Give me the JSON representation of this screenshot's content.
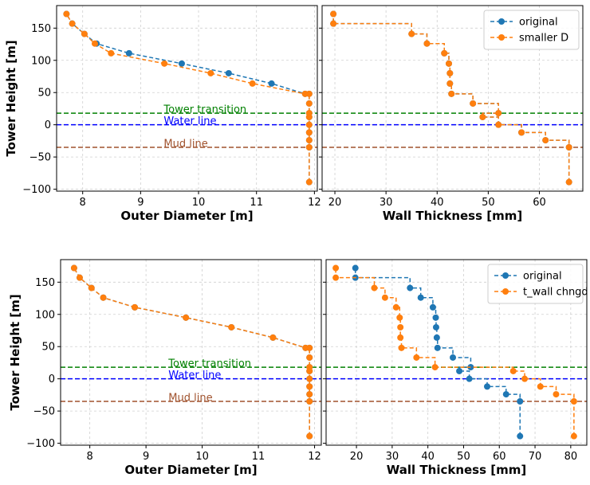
{
  "colors": {
    "original": "#1f77b4",
    "modified": "#ff7f0e",
    "transition": "#008000",
    "water": "#0000ff",
    "mud": "#a0522d"
  },
  "annotations": {
    "transition": "Tower transition",
    "water": "Water line",
    "mud": "Mud line"
  },
  "reference_lines": {
    "transition": 18,
    "water": 0,
    "mud": -35
  },
  "chart_data": [
    {
      "type": "line",
      "panel": "top-left",
      "xlabel": "Outer Diameter [m]",
      "ylabel": "Tower Height [m]",
      "xlim": [
        7.55,
        12.05
      ],
      "ylim": [
        -103,
        185
      ],
      "xticks": [
        "8",
        "9",
        "10",
        "11",
        "12"
      ],
      "xtick_values": [
        8,
        9,
        10,
        11,
        12
      ],
      "yticks": [
        "−100",
        "−50",
        "0",
        "50",
        "100",
        "150"
      ],
      "ytick_values": [
        -100,
        -50,
        0,
        50,
        100,
        150
      ],
      "grid": true,
      "series": [
        {
          "name": "original",
          "color": "#1f77b4",
          "x": [
            11.91,
            11.91,
            11.91,
            11.91,
            11.91,
            11.91,
            11.91,
            11.91,
            11.91,
            11.84,
            11.26,
            10.52,
            9.71,
            8.8,
            8.24,
            8.03,
            7.82,
            7.72
          ],
          "y": [
            -89,
            -35,
            -24,
            -12,
            0,
            12,
            18,
            33,
            48,
            48,
            64,
            80,
            95,
            111,
            126,
            141,
            157,
            172
          ]
        },
        {
          "name": "smaller D",
          "color": "#ff7f0e",
          "x": [
            11.91,
            11.91,
            11.91,
            11.91,
            11.91,
            11.91,
            11.91,
            11.91,
            11.91,
            11.84,
            10.93,
            10.21,
            9.41,
            8.49,
            8.21,
            8.03,
            7.82,
            7.72
          ],
          "y": [
            -89,
            -35,
            -24,
            -12,
            0,
            12,
            18,
            33,
            48,
            48,
            64,
            80,
            95,
            111,
            126,
            141,
            157,
            172
          ]
        }
      ]
    },
    {
      "type": "line",
      "panel": "top-right",
      "xlabel": "Wall Thickness [mm]",
      "legend_position": "top-right",
      "xlim": [
        17.5,
        68.5
      ],
      "ylim": [
        -103,
        185
      ],
      "xticks": [
        "20",
        "30",
        "40",
        "50",
        "60"
      ],
      "xtick_values": [
        20,
        30,
        40,
        50,
        60
      ],
      "yticks": [],
      "ytick_values": [
        -100,
        -50,
        0,
        50,
        100,
        150
      ],
      "grid": true,
      "legend": [
        "original",
        "smaller D"
      ],
      "series": [
        {
          "name": "original",
          "color": "#1f77b4",
          "x": [
            65.8,
            65.8,
            61.2,
            56.5,
            52.0,
            48.9,
            52.0,
            47.0,
            42.8,
            42.5,
            42.5,
            42.3,
            41.4,
            38.0,
            35.0,
            19.7,
            19.7
          ],
          "y": [
            -89,
            -35,
            -24,
            -12,
            0,
            12,
            18,
            33,
            48,
            64,
            80,
            95,
            111,
            126,
            141,
            157,
            172
          ]
        },
        {
          "name": "smaller D",
          "color": "#ff7f0e",
          "x": [
            65.8,
            65.8,
            61.2,
            56.5,
            52.0,
            48.9,
            52.0,
            47.0,
            42.8,
            42.5,
            42.5,
            42.3,
            41.4,
            38.0,
            35.0,
            19.7,
            19.7
          ],
          "y": [
            -89,
            -35,
            -24,
            -12,
            0,
            12,
            18,
            33,
            48,
            64,
            80,
            95,
            111,
            126,
            141,
            157,
            172
          ]
        }
      ]
    },
    {
      "type": "line",
      "panel": "bottom-left",
      "xlabel": "Outer Diameter [m]",
      "ylabel": "Tower Height [m]",
      "xlim": [
        7.48,
        12.12
      ],
      "ylim": [
        -103,
        185
      ],
      "xticks": [
        "8",
        "9",
        "10",
        "11",
        "12"
      ],
      "xtick_values": [
        8,
        9,
        10,
        11,
        12
      ],
      "yticks": [
        "−100",
        "−50",
        "0",
        "50",
        "100",
        "150"
      ],
      "ytick_values": [
        -100,
        -50,
        0,
        50,
        100,
        150
      ],
      "grid": true,
      "series": [
        {
          "name": "original",
          "color": "#1f77b4",
          "x": [
            11.91,
            11.91,
            11.91,
            11.91,
            11.91,
            11.91,
            11.91,
            11.91,
            11.91,
            11.84,
            11.26,
            10.52,
            9.71,
            8.8,
            8.24,
            8.03,
            7.82,
            7.72
          ],
          "y": [
            -89,
            -35,
            -24,
            -12,
            0,
            12,
            18,
            33,
            48,
            48,
            64,
            80,
            95,
            111,
            126,
            141,
            157,
            172
          ]
        },
        {
          "name": "t_wall chngd",
          "color": "#ff7f0e",
          "x": [
            11.91,
            11.91,
            11.91,
            11.91,
            11.91,
            11.91,
            11.91,
            11.91,
            11.91,
            11.84,
            11.26,
            10.52,
            9.71,
            8.8,
            8.24,
            8.03,
            7.82,
            7.72
          ],
          "y": [
            -89,
            -35,
            -24,
            -12,
            0,
            12,
            18,
            33,
            48,
            48,
            64,
            80,
            95,
            111,
            126,
            141,
            157,
            172
          ]
        }
      ]
    },
    {
      "type": "line",
      "panel": "bottom-right",
      "xlabel": "Wall Thickness [mm]",
      "legend_position": "top-right",
      "xlim": [
        11.5,
        84.5
      ],
      "ylim": [
        -103,
        185
      ],
      "xticks": [
        "20",
        "30",
        "40",
        "50",
        "60",
        "70",
        "80"
      ],
      "xtick_values": [
        20,
        30,
        40,
        50,
        60,
        70,
        80
      ],
      "yticks": [],
      "ytick_values": [
        -100,
        -50,
        0,
        50,
        100,
        150
      ],
      "grid": true,
      "legend": [
        "original",
        "t_wall chngd"
      ],
      "series": [
        {
          "name": "original",
          "color": "#1f77b4",
          "x": [
            65.8,
            65.8,
            61.9,
            56.6,
            51.6,
            48.8,
            52.0,
            47.0,
            42.7,
            42.5,
            42.3,
            42.2,
            41.4,
            38.0,
            35.0,
            19.7,
            19.7
          ],
          "y": [
            -89,
            -35,
            -24,
            -12,
            0,
            12,
            18,
            33,
            48,
            64,
            80,
            95,
            111,
            126,
            141,
            157,
            172
          ]
        },
        {
          "name": "t_wall chngd",
          "color": "#ff7f0e",
          "x": [
            80.9,
            80.9,
            75.9,
            71.5,
            67.1,
            63.9,
            42.0,
            36.8,
            32.6,
            32.3,
            32.3,
            32.1,
            31.1,
            28.0,
            25.0,
            14.2,
            14.2
          ],
          "y": [
            -89,
            -35,
            -24,
            -12,
            0,
            12,
            18,
            33,
            48,
            64,
            80,
            95,
            111,
            126,
            141,
            157,
            172
          ]
        }
      ]
    }
  ]
}
